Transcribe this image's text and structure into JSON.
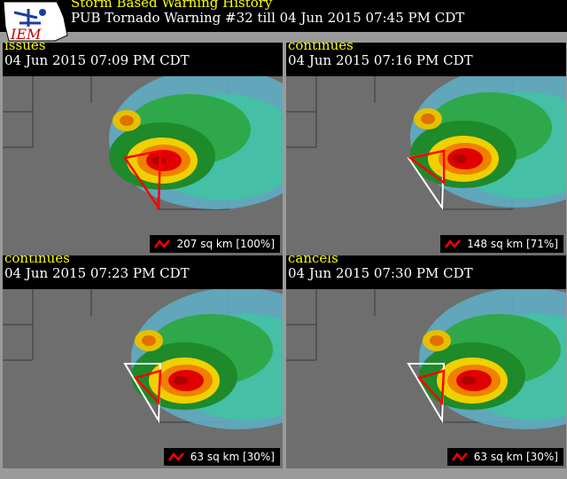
{
  "header": {
    "title": "Storm Based Warning History",
    "subtitle": "PUB Tornado Warning #32 till  04 Jun 2015 07:45 PM CDT",
    "logo_text": "IEM"
  },
  "panels": [
    {
      "status": "issues",
      "time": "04 Jun 2015 07:09 PM CDT",
      "area": "207 sq km [100%]"
    },
    {
      "status": "continues",
      "time": "04 Jun 2015 07:16 PM CDT",
      "area": "148 sq km [71%]"
    },
    {
      "status": "continues",
      "time": "04 Jun 2015 07:23 PM CDT",
      "area": "63 sq km [30%]"
    },
    {
      "status": "cancels",
      "time": "04 Jun 2015 07:30 PM CDT",
      "area": "63 sq km [30%]"
    }
  ],
  "colors": {
    "warning_polygon": "#ff0000",
    "original_polygon": "#ffffff",
    "title": "#ffff00"
  }
}
